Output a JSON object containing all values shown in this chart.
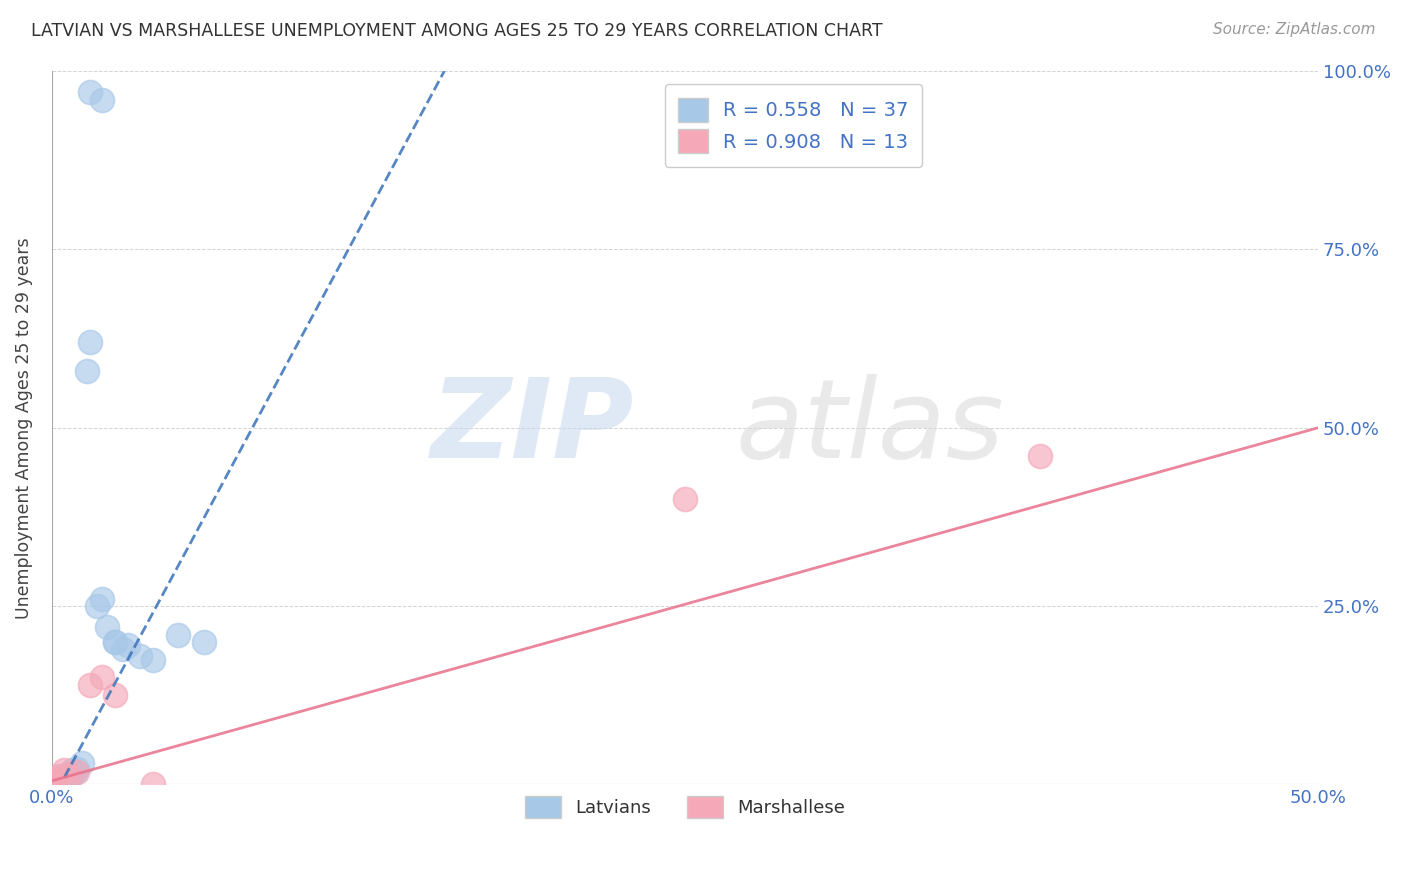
{
  "title": "LATVIAN VS MARSHALLESE UNEMPLOYMENT AMONG AGES 25 TO 29 YEARS CORRELATION CHART",
  "source": "Source: ZipAtlas.com",
  "ylabel": "Unemployment Among Ages 25 to 29 years",
  "xlabel_latvians": "Latvians",
  "xlabel_marshallese": "Marshallese",
  "xlim": [
    0.0,
    0.5
  ],
  "ylim": [
    0.0,
    1.0
  ],
  "xticks": [
    0.0,
    0.1,
    0.2,
    0.3,
    0.4,
    0.5
  ],
  "xticklabels": [
    "0.0%",
    "",
    "",
    "",
    "",
    "50.0%"
  ],
  "yticks_left": [
    0.0,
    0.25,
    0.5,
    0.75,
    1.0
  ],
  "yticklabels_left": [
    "",
    "",
    "",
    "",
    ""
  ],
  "yticks_right": [
    0.25,
    0.5,
    0.75,
    1.0
  ],
  "yticklabels_right": [
    "25.0%",
    "50.0%",
    "75.0%",
    "100.0%"
  ],
  "latvian_R": 0.558,
  "latvian_N": 37,
  "marshallese_R": 0.908,
  "marshallese_N": 13,
  "latvian_color": "#a8c8e8",
  "marshallese_color": "#f4a8b8",
  "latvian_line_color": "#3a72b8",
  "marshallese_line_color": "#e8708a",
  "latvian_x": [
    0.0,
    0.0,
    0.0,
    0.001,
    0.001,
    0.002,
    0.002,
    0.003,
    0.003,
    0.003,
    0.004,
    0.004,
    0.005,
    0.005,
    0.005,
    0.006,
    0.007,
    0.008,
    0.008,
    0.009,
    0.01,
    0.012,
    0.014,
    0.015,
    0.018,
    0.02,
    0.022,
    0.025,
    0.028,
    0.03,
    0.035,
    0.04,
    0.05,
    0.06,
    0.015,
    0.02,
    0.025
  ],
  "latvian_y": [
    0.0,
    0.003,
    0.007,
    0.0,
    0.005,
    0.002,
    0.008,
    0.0,
    0.005,
    0.01,
    0.003,
    0.007,
    0.0,
    0.004,
    0.01,
    0.012,
    0.008,
    0.02,
    0.015,
    0.018,
    0.022,
    0.03,
    0.58,
    0.62,
    0.25,
    0.26,
    0.22,
    0.2,
    0.19,
    0.195,
    0.18,
    0.175,
    0.21,
    0.2,
    0.97,
    0.96,
    0.2
  ],
  "marshallese_x": [
    0.0,
    0.001,
    0.002,
    0.003,
    0.005,
    0.007,
    0.01,
    0.015,
    0.02,
    0.025,
    0.25,
    0.39,
    0.04
  ],
  "marshallese_y": [
    0.0,
    0.005,
    0.008,
    0.012,
    0.02,
    0.015,
    0.018,
    0.14,
    0.15,
    0.125,
    0.4,
    0.46,
    0.0
  ],
  "lv_line_x": [
    0.005,
    0.155
  ],
  "lv_line_y": [
    0.01,
    1.0
  ],
  "ms_line_x": [
    0.0,
    0.5
  ],
  "ms_line_y": [
    0.005,
    0.5
  ],
  "watermark_zip": "ZIP",
  "watermark_atlas": "atlas",
  "background_color": "#ffffff",
  "grid_color": "#d0d0d0"
}
